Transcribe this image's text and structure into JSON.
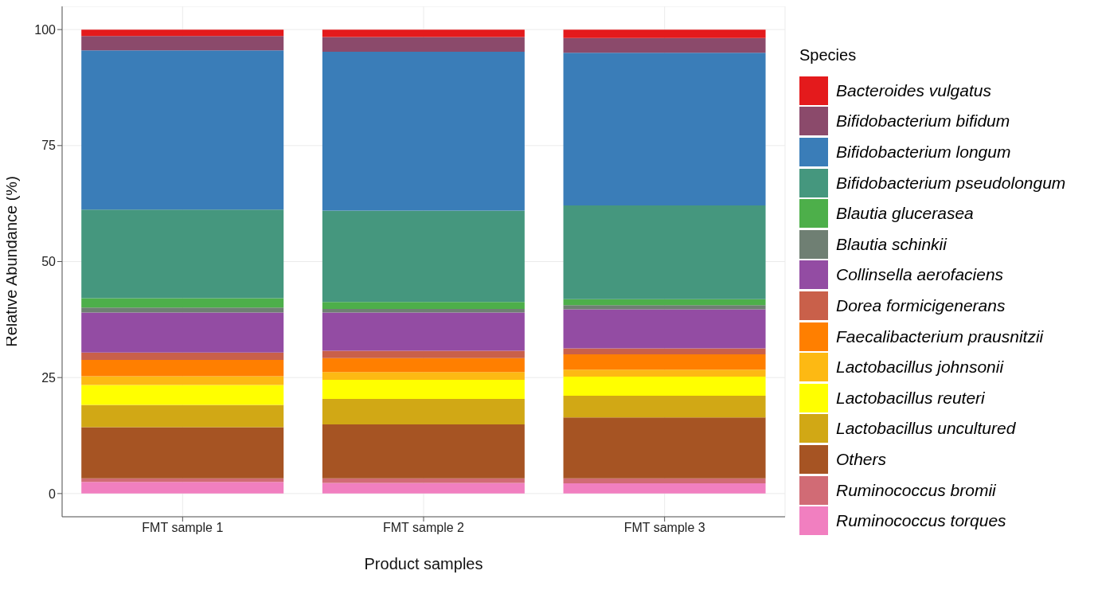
{
  "chart_data": {
    "type": "bar",
    "stacked": true,
    "xlabel": "Product samples",
    "ylabel": "Relative Abundance (%)",
    "legend_title": "Species",
    "legend": "right",
    "grid": true,
    "categories": [
      "FMT sample 1",
      "FMT sample 2",
      "FMT sample 3"
    ],
    "ylim": [
      -5,
      105
    ],
    "yticks": [
      0,
      25,
      50,
      75,
      100
    ],
    "series": [
      {
        "name": "Ruminococcus torques",
        "color": "#f17fc0",
        "values": [
          2.5,
          2.3,
          2.2
        ]
      },
      {
        "name": "Ruminococcus bromii",
        "color": "#d16b75",
        "values": [
          0.8,
          1.0,
          1.1
        ]
      },
      {
        "name": "Others",
        "color": "#a65423",
        "values": [
          11.0,
          11.6,
          13.1
        ]
      },
      {
        "name": "Lactobacillus uncultured",
        "color": "#d1a815",
        "values": [
          4.8,
          5.5,
          4.7
        ]
      },
      {
        "name": "Lactobacillus reuteri",
        "color": "#ffff00",
        "values": [
          4.3,
          4.1,
          4.1
        ]
      },
      {
        "name": "Lactobacillus johnsonii",
        "color": "#fdb913",
        "values": [
          1.9,
          1.7,
          1.5
        ]
      },
      {
        "name": "Faecalibacterium prausnitzii",
        "color": "#ff7f00",
        "values": [
          3.5,
          3.0,
          3.3
        ]
      },
      {
        "name": "Dorea formicigenerans",
        "color": "#c9604a",
        "values": [
          1.6,
          1.6,
          1.3
        ]
      },
      {
        "name": "Collinsella aerofaciens",
        "color": "#934ca3",
        "values": [
          8.6,
          8.2,
          8.4
        ]
      },
      {
        "name": "Blautia schinkii",
        "color": "#6f7f73",
        "values": [
          1.1,
          0.8,
          0.9
        ]
      },
      {
        "name": "Blautia glucerasea",
        "color": "#4daf4a",
        "values": [
          2.0,
          1.5,
          1.3
        ]
      },
      {
        "name": "Bifidobacterium pseudolongum",
        "color": "#45977e",
        "values": [
          19.1,
          19.7,
          20.2
        ]
      },
      {
        "name": "Bifidobacterium longum",
        "color": "#3a7db8",
        "values": [
          34.3,
          34.2,
          32.9
        ]
      },
      {
        "name": "Bifidobacterium bifidum",
        "color": "#8b4a6b",
        "values": [
          3.1,
          3.2,
          3.2
        ]
      },
      {
        "name": "Bacteroides vulgatus",
        "color": "#e41a1c",
        "values": [
          1.4,
          1.6,
          1.8
        ]
      }
    ]
  }
}
